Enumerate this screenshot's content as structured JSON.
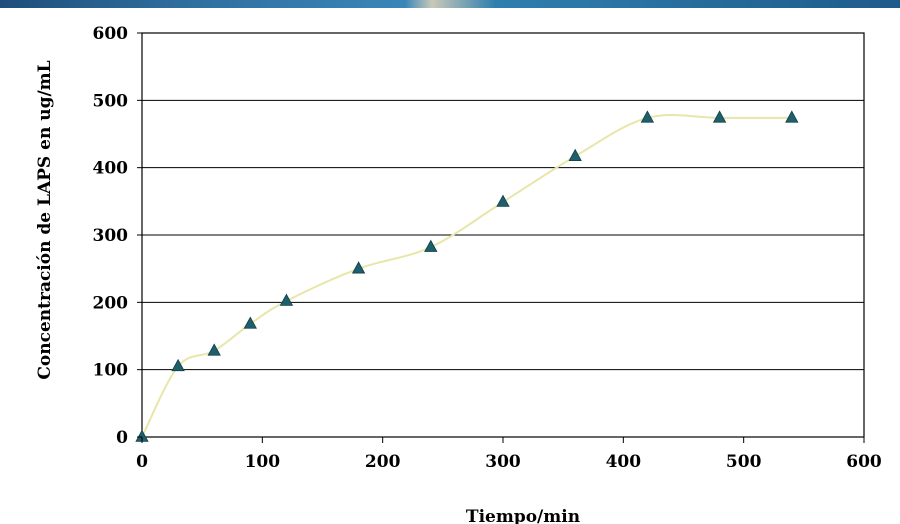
{
  "chart_data": {
    "type": "line",
    "xlabel": "Tiempo/min",
    "ylabel": "Concentración de LAPS en ug/mL",
    "xlim": [
      0,
      600
    ],
    "ylim": [
      0,
      600
    ],
    "x_ticks": [
      "0",
      "100",
      "200",
      "300",
      "400",
      "500",
      "600"
    ],
    "y_ticks": [
      "0",
      "100",
      "200",
      "300",
      "400",
      "500",
      "600"
    ],
    "grid": "horizontal",
    "marker": "triangle",
    "series": [
      {
        "x": [
          0,
          30,
          60,
          90,
          120,
          180,
          240,
          300,
          360,
          420,
          480,
          540
        ],
        "y": [
          0,
          105,
          128,
          168,
          202,
          250,
          282,
          349,
          417,
          474,
          474,
          474
        ]
      }
    ]
  },
  "colors": {
    "line": "#e8e6a8",
    "marker": "#1f5f6b",
    "header_strip": "#2e6e9e"
  }
}
